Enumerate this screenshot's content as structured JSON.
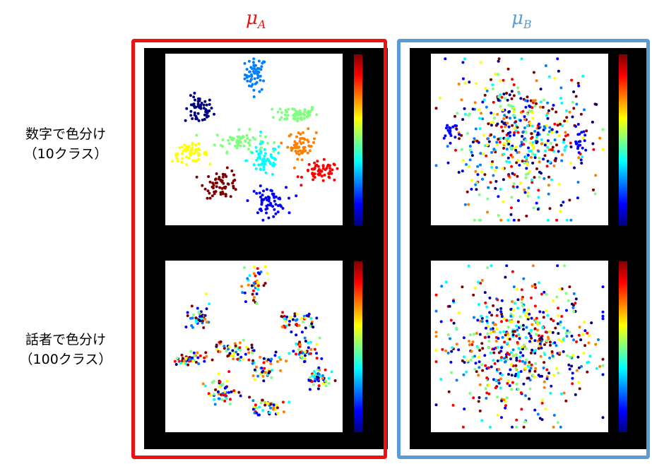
{
  "columns": {
    "a": {
      "symbol": "μ",
      "subscript": "A",
      "color": "#ee1111"
    },
    "b": {
      "symbol": "μ",
      "subscript": "B",
      "color": "#5b9bd5"
    }
  },
  "rows": {
    "digit": {
      "line1": "数字で色分け",
      "line2": "（10クラス）"
    },
    "speaker": {
      "line1": "話者で色分け",
      "line2": "（100クラス）"
    }
  },
  "colormap": [
    "#000080",
    "#0000ff",
    "#0080ff",
    "#00ffff",
    "#80ff80",
    "#ffff00",
    "#ff8000",
    "#ff0000",
    "#800000"
  ],
  "chart_data": [
    {
      "type": "scatter",
      "panel": "mu_A-digit",
      "xlim": [
        0,
        1
      ],
      "ylim": [
        0,
        1
      ],
      "clusters": [
        {
          "class": 2,
          "cx": 0.51,
          "cy": 0.88,
          "sx": 0.03,
          "sy": 0.05,
          "n": 55
        },
        {
          "class": 0,
          "cx": 0.19,
          "cy": 0.67,
          "sx": 0.04,
          "sy": 0.04,
          "n": 55
        },
        {
          "class": 5,
          "cx": 0.74,
          "cy": 0.65,
          "sx": 0.06,
          "sy": 0.025,
          "n": 60
        },
        {
          "class": 4,
          "cx": 0.42,
          "cy": 0.49,
          "sx": 0.07,
          "sy": 0.03,
          "n": 60
        },
        {
          "class": 7,
          "cx": 0.77,
          "cy": 0.47,
          "sx": 0.04,
          "sy": 0.04,
          "n": 55
        },
        {
          "class": 6,
          "cx": 0.14,
          "cy": 0.42,
          "sx": 0.05,
          "sy": 0.025,
          "n": 55
        },
        {
          "class": 3,
          "cx": 0.56,
          "cy": 0.38,
          "sx": 0.05,
          "sy": 0.05,
          "n": 60
        },
        {
          "class": 8,
          "cx": 0.88,
          "cy": 0.31,
          "sx": 0.05,
          "sy": 0.03,
          "n": 55
        },
        {
          "class": 9,
          "cx": 0.32,
          "cy": 0.24,
          "sx": 0.05,
          "sy": 0.04,
          "n": 60
        },
        {
          "class": 1,
          "cx": 0.58,
          "cy": 0.14,
          "sx": 0.05,
          "sy": 0.04,
          "n": 60
        }
      ]
    },
    {
      "type": "scatter",
      "panel": "mu_B-digit",
      "xlim": [
        0,
        1
      ],
      "ylim": [
        0,
        1
      ],
      "clusters": [
        {
          "class": "mixed",
          "cx": 0.5,
          "cy": 0.5,
          "sx": 0.2,
          "sy": 0.2,
          "n": 520
        },
        {
          "class": 1,
          "cx": 0.11,
          "cy": 0.55,
          "sx": 0.03,
          "sy": 0.03,
          "n": 18
        },
        {
          "class": 1,
          "cx": 0.84,
          "cy": 0.48,
          "sx": 0.02,
          "sy": 0.04,
          "n": 22
        }
      ]
    },
    {
      "type": "scatter",
      "panel": "mu_A-speaker",
      "xlim": [
        0,
        1
      ],
      "ylim": [
        0,
        1
      ],
      "clusters": [
        {
          "class": "mixed",
          "cx": 0.51,
          "cy": 0.88,
          "sx": 0.03,
          "sy": 0.05,
          "n": 40
        },
        {
          "class": "mixed",
          "cx": 0.19,
          "cy": 0.67,
          "sx": 0.03,
          "sy": 0.04,
          "n": 40
        },
        {
          "class": "mixed",
          "cx": 0.74,
          "cy": 0.65,
          "sx": 0.06,
          "sy": 0.025,
          "n": 45
        },
        {
          "class": "mixed",
          "cx": 0.4,
          "cy": 0.47,
          "sx": 0.06,
          "sy": 0.03,
          "n": 50
        },
        {
          "class": "mixed",
          "cx": 0.77,
          "cy": 0.47,
          "sx": 0.04,
          "sy": 0.04,
          "n": 45
        },
        {
          "class": "mixed",
          "cx": 0.14,
          "cy": 0.42,
          "sx": 0.04,
          "sy": 0.025,
          "n": 45
        },
        {
          "class": "mixed",
          "cx": 0.56,
          "cy": 0.38,
          "sx": 0.04,
          "sy": 0.05,
          "n": 45
        },
        {
          "class": "mixed",
          "cx": 0.88,
          "cy": 0.31,
          "sx": 0.04,
          "sy": 0.03,
          "n": 45
        },
        {
          "class": "mixed",
          "cx": 0.32,
          "cy": 0.24,
          "sx": 0.04,
          "sy": 0.04,
          "n": 50
        },
        {
          "class": "mixed",
          "cx": 0.58,
          "cy": 0.14,
          "sx": 0.05,
          "sy": 0.03,
          "n": 45
        }
      ]
    },
    {
      "type": "scatter",
      "panel": "mu_B-speaker",
      "xlim": [
        0,
        1
      ],
      "ylim": [
        0,
        1
      ],
      "clusters": [
        {
          "class": "mixed",
          "cx": 0.5,
          "cy": 0.5,
          "sx": 0.21,
          "sy": 0.2,
          "n": 560
        }
      ]
    }
  ]
}
